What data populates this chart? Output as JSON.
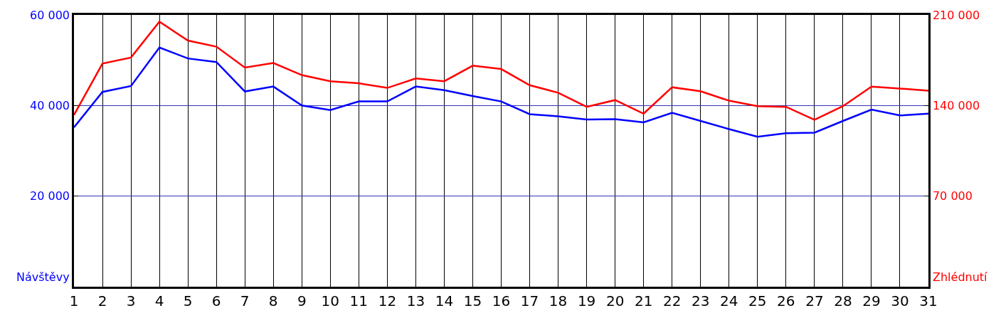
{
  "chart_data": {
    "type": "line",
    "x": [
      1,
      2,
      3,
      4,
      5,
      6,
      7,
      8,
      9,
      10,
      11,
      12,
      13,
      14,
      15,
      16,
      17,
      18,
      19,
      20,
      21,
      22,
      23,
      24,
      25,
      26,
      27,
      28,
      29,
      30,
      31
    ],
    "xlim": [
      1,
      31
    ],
    "xticks": [
      1,
      2,
      3,
      4,
      5,
      6,
      7,
      8,
      9,
      10,
      11,
      12,
      13,
      14,
      15,
      16,
      17,
      18,
      19,
      20,
      21,
      22,
      23,
      24,
      25,
      26,
      27,
      28,
      29,
      30,
      31
    ],
    "ylabel": "Návštěvy",
    "y2label": "Zhlédnutí",
    "ylim": [
      0,
      60000
    ],
    "yticks": [
      {
        "value": 20000,
        "label": "20 000"
      },
      {
        "value": 40000,
        "label": "40 000"
      },
      {
        "value": 60000,
        "label": "60 000"
      }
    ],
    "y2lim": [
      0,
      210000
    ],
    "y2ticks": [
      {
        "value": 70000,
        "label": "70 000"
      },
      {
        "value": 140000,
        "label": "140 000"
      },
      {
        "value": 210000,
        "label": "210 000"
      }
    ],
    "grid": true,
    "marker": "none",
    "line_style": "solid",
    "series": [
      {
        "color": "#0000ff",
        "values": [
          35200,
          43000,
          44300,
          52800,
          50400,
          49600,
          43100,
          44200,
          40000,
          39000,
          40900,
          40900,
          44200,
          43400,
          42100,
          40900,
          38100,
          37600,
          36900,
          37000,
          36300,
          38400,
          36600,
          34800,
          33100,
          33900,
          34000,
          36600,
          39100,
          37800,
          38200
        ]
      },
      {
        "color": "#ff0000",
        "axis": "y2",
        "values": [
          132700,
          172400,
          177100,
          204800,
          190200,
          185500,
          169300,
          172900,
          163500,
          158800,
          157200,
          153600,
          160900,
          158800,
          170800,
          168200,
          155700,
          149900,
          139000,
          144200,
          133700,
          154100,
          151000,
          143700,
          139500,
          139000,
          129000,
          139500,
          154600,
          153100,
          151500
        ]
      }
    ]
  }
}
